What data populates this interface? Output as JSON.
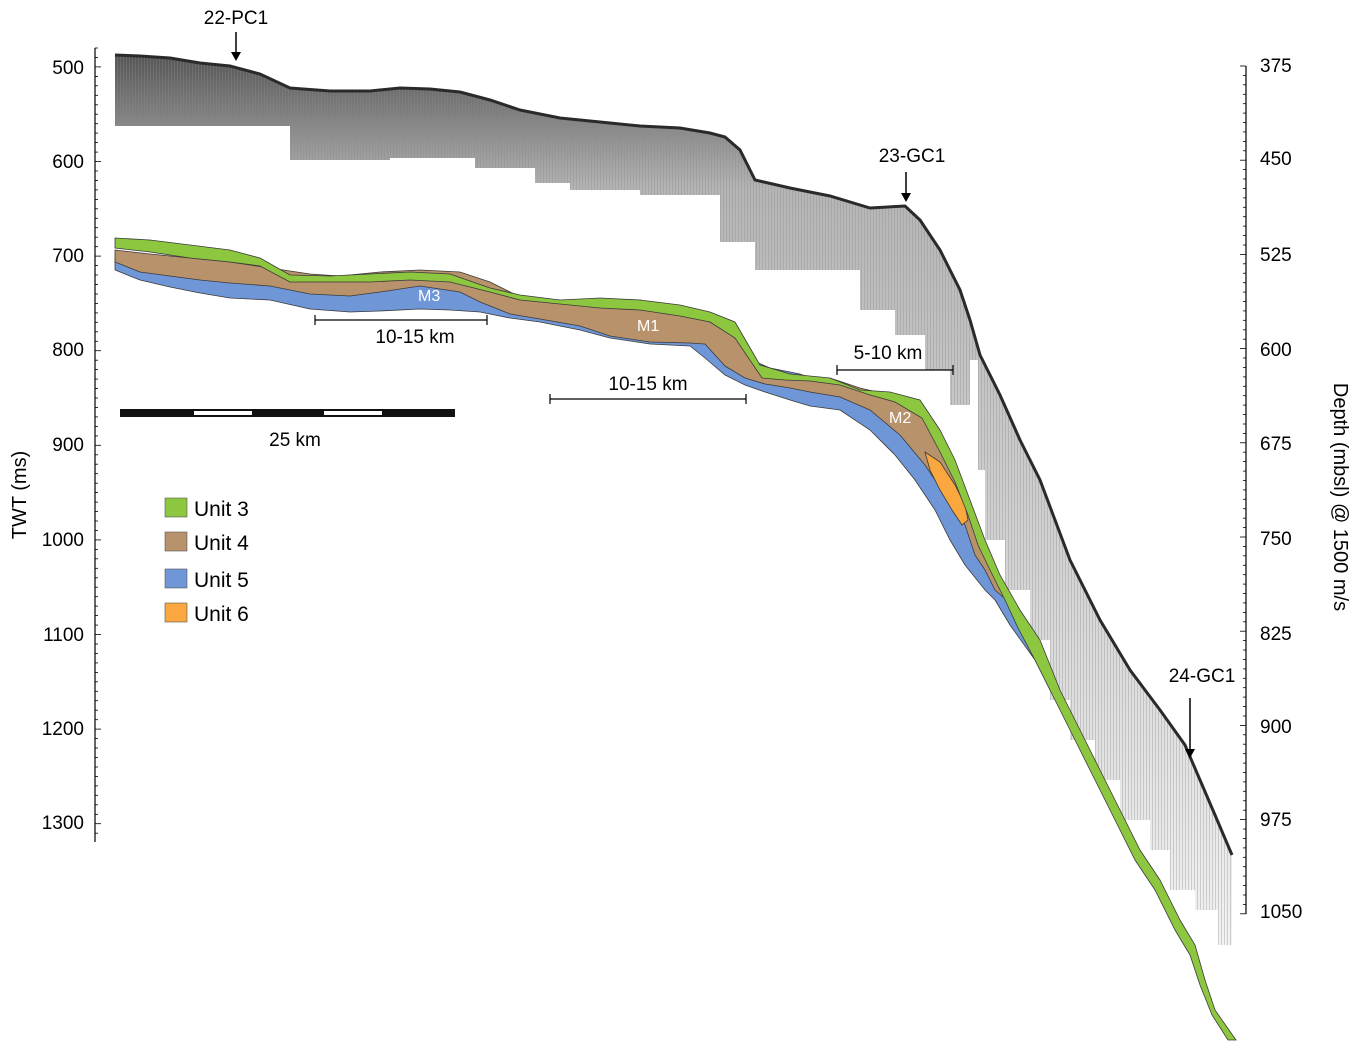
{
  "axes": {
    "left_title": "TWT (ms)",
    "right_title": "Depth (mbsl) @ 1500 m/s",
    "left_ticks": [
      "500",
      "600",
      "700",
      "800",
      "900",
      "1000",
      "1100",
      "1200",
      "1300"
    ],
    "right_ticks": [
      "375",
      "450",
      "525",
      "600",
      "675",
      "750",
      "825",
      "900",
      "975",
      "1050"
    ]
  },
  "cores": [
    {
      "label": "22-PC1"
    },
    {
      "label": "23-GC1"
    },
    {
      "label": "24-GC1"
    }
  ],
  "spans": [
    {
      "label": "10-15 km"
    },
    {
      "label": "10-15 km"
    },
    {
      "label": "5-10 km"
    }
  ],
  "scale_bar": {
    "label": "25 km"
  },
  "unit_labels": [
    "M3",
    "M1",
    "M2"
  ],
  "legend": [
    {
      "label": "Unit 3",
      "color": "#8dc63f"
    },
    {
      "label": "Unit 4",
      "color": "#b8926a"
    },
    {
      "label": "Unit 5",
      "color": "#6f96d6"
    },
    {
      "label": "Unit 6",
      "color": "#f9a73e"
    }
  ],
  "colors": {
    "seismic": "#9a9a9a",
    "seismic_edge": "#2a2a2a",
    "outline": "#3a3a3a"
  }
}
